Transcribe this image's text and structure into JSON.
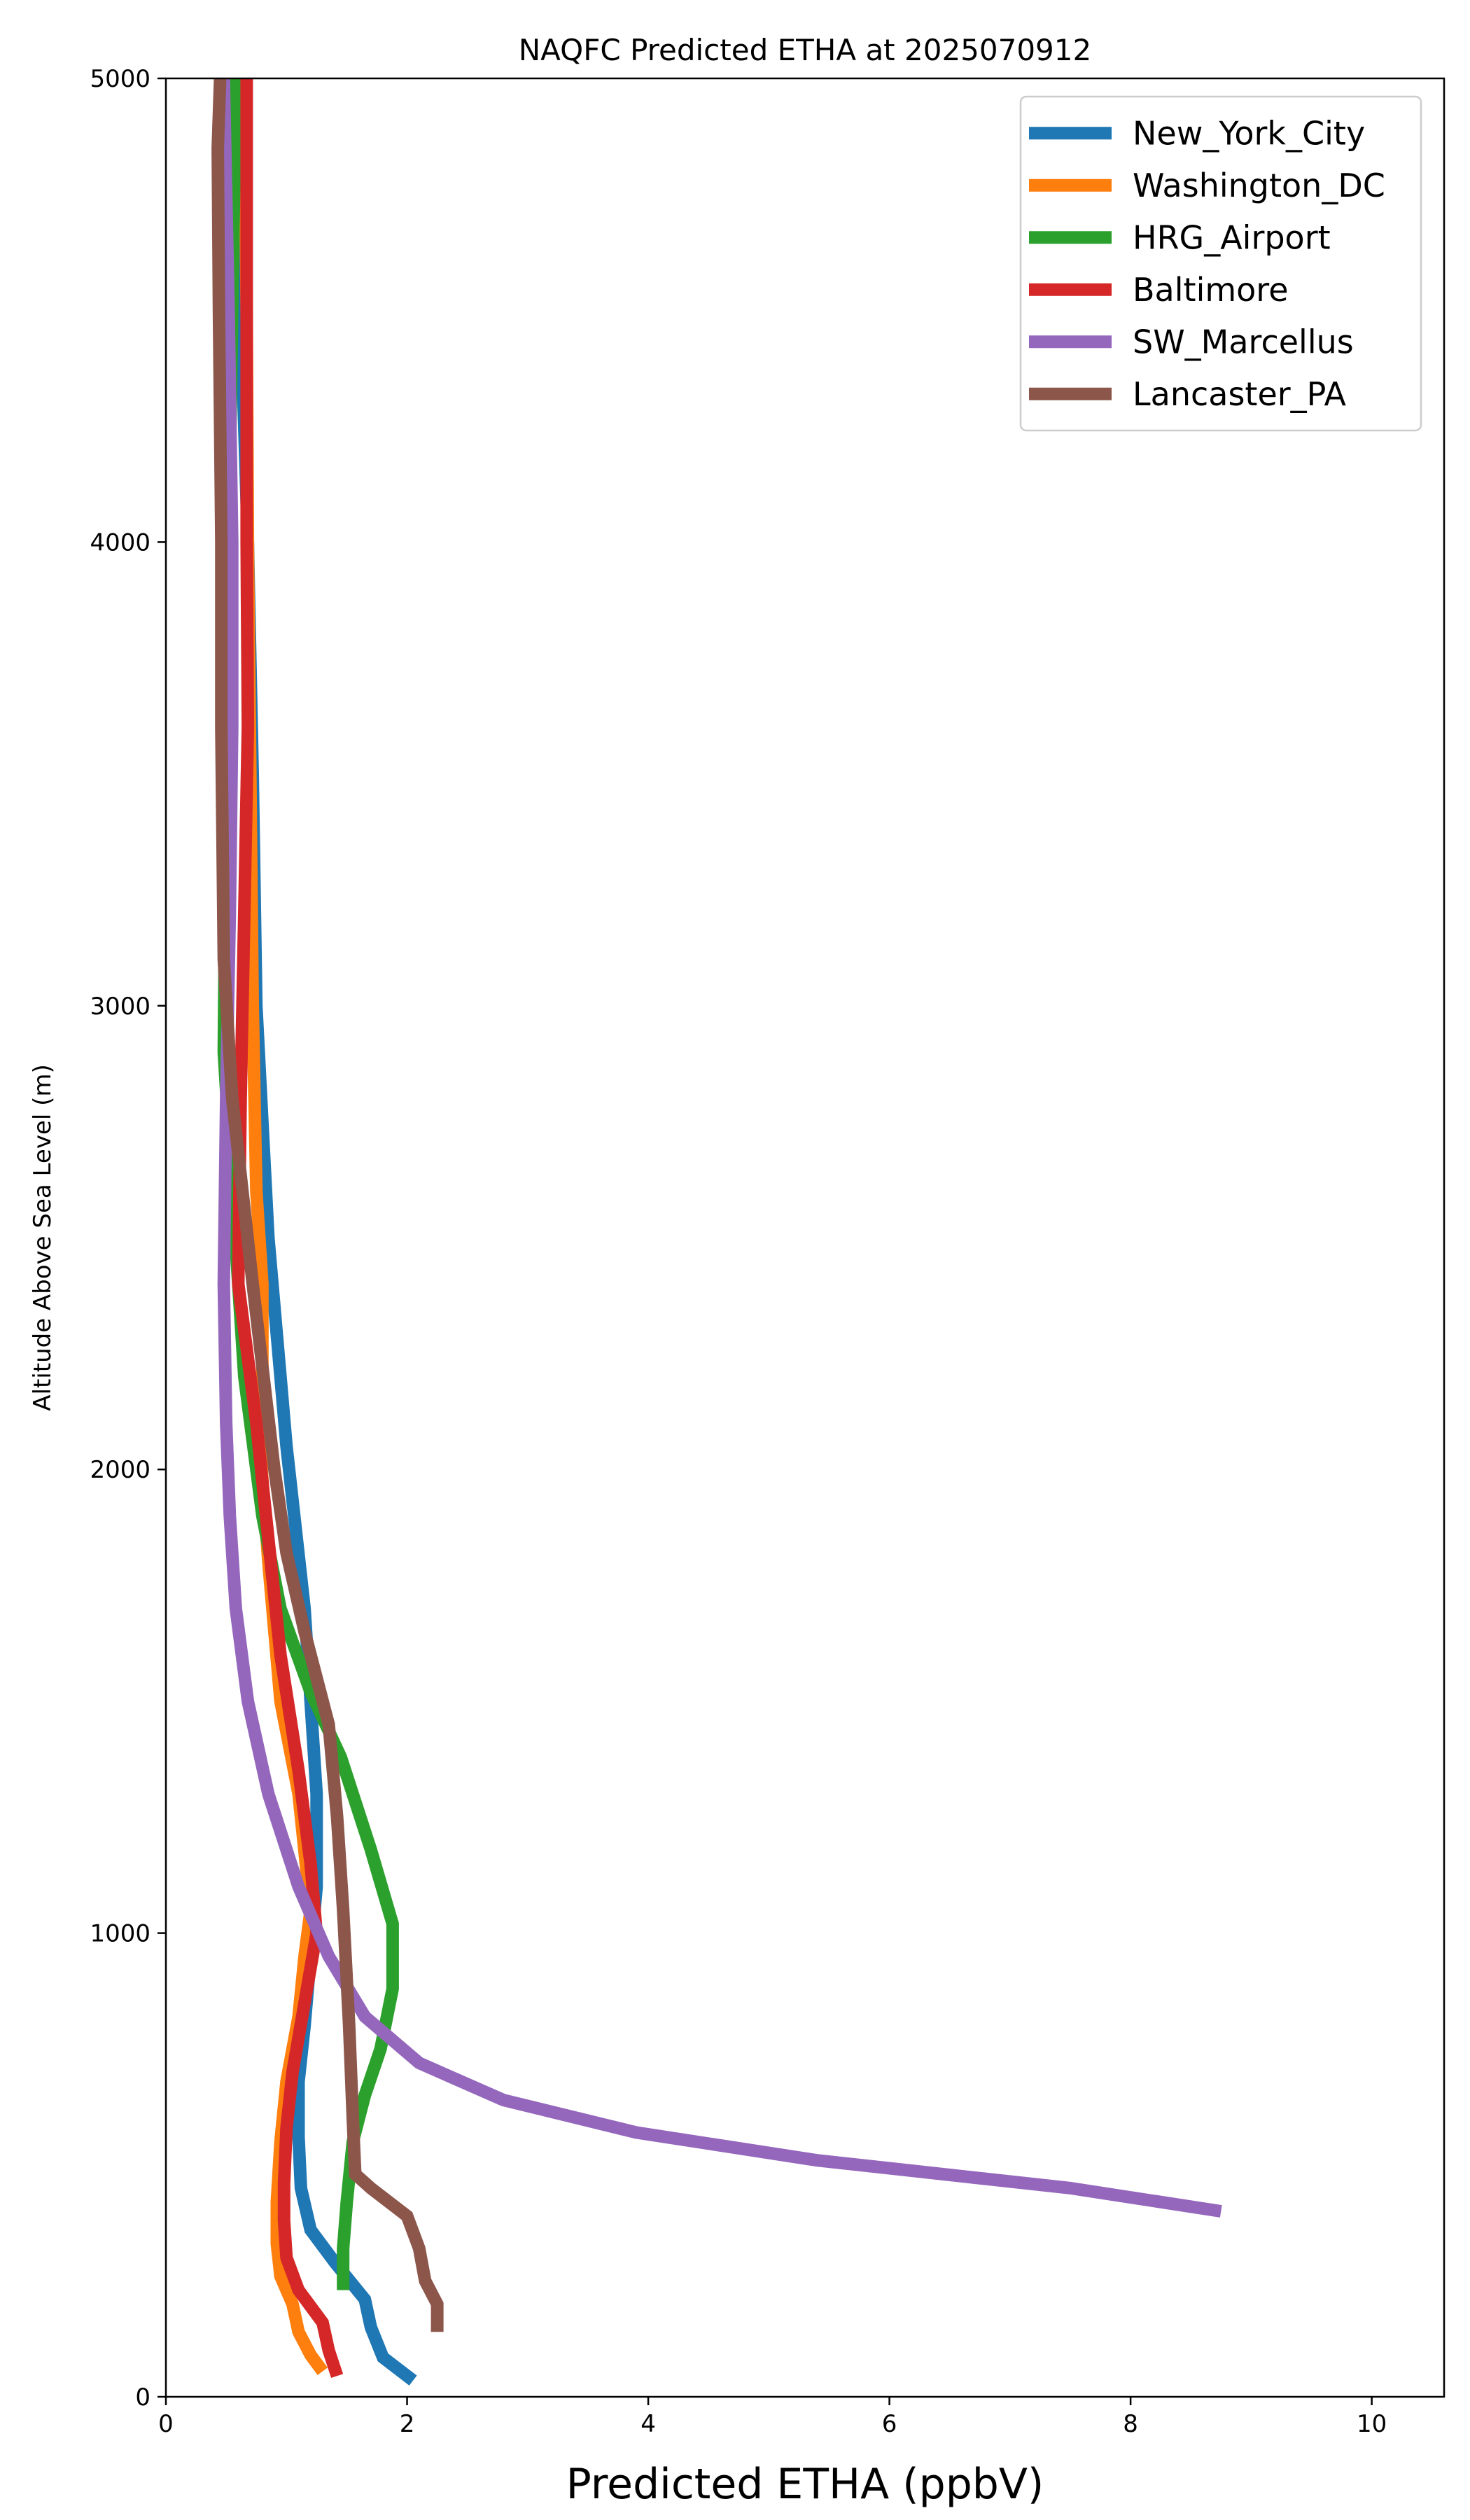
{
  "chart_data": {
    "type": "line",
    "title": "NAQFC Predicted ETHA at 2025070912",
    "xlabel": "Predicted ETHA (ppbV)",
    "ylabel": "Altitude Above Sea Level (m)",
    "xlim": [
      0,
      10.6
    ],
    "ylim": [
      0,
      5000
    ],
    "x_ticks": [
      0,
      2,
      4,
      6,
      8,
      10
    ],
    "y_ticks": [
      0,
      1000,
      2000,
      3000,
      4000,
      5000
    ],
    "legend_position": "top-right",
    "grid": false,
    "series": [
      {
        "name": "New_York_City",
        "color": "#1f77b4",
        "points": [
          [
            2.05,
            35
          ],
          [
            1.8,
            85
          ],
          [
            1.7,
            150
          ],
          [
            1.65,
            210
          ],
          [
            1.4,
            290
          ],
          [
            1.2,
            360
          ],
          [
            1.12,
            450
          ],
          [
            1.1,
            560
          ],
          [
            1.1,
            680
          ],
          [
            1.15,
            800
          ],
          [
            1.2,
            950
          ],
          [
            1.25,
            1100
          ],
          [
            1.25,
            1300
          ],
          [
            1.2,
            1500
          ],
          [
            1.15,
            1700
          ],
          [
            1.0,
            2050
          ],
          [
            0.95,
            2200
          ],
          [
            0.85,
            2500
          ],
          [
            0.75,
            3000
          ],
          [
            0.72,
            3500
          ],
          [
            0.68,
            4000
          ],
          [
            0.62,
            4500
          ],
          [
            0.6,
            5000
          ]
        ]
      },
      {
        "name": "Washington_DC",
        "color": "#ff7f0e",
        "points": [
          [
            1.3,
            55
          ],
          [
            1.2,
            90
          ],
          [
            1.1,
            140
          ],
          [
            1.05,
            200
          ],
          [
            0.95,
            260
          ],
          [
            0.92,
            330
          ],
          [
            0.92,
            420
          ],
          [
            0.95,
            550
          ],
          [
            1.0,
            680
          ],
          [
            1.1,
            820
          ],
          [
            1.15,
            950
          ],
          [
            1.2,
            1050
          ],
          [
            1.1,
            1300
          ],
          [
            0.95,
            1500
          ],
          [
            0.9,
            1650
          ],
          [
            0.85,
            1800
          ],
          [
            0.78,
            2050
          ],
          [
            0.8,
            2200
          ],
          [
            0.8,
            2400
          ],
          [
            0.75,
            2600
          ],
          [
            0.72,
            3000
          ],
          [
            0.7,
            3500
          ],
          [
            0.68,
            4000
          ],
          [
            0.67,
            4500
          ],
          [
            0.65,
            5000
          ]
        ]
      },
      {
        "name": "HRG_Airport",
        "color": "#2ca02c",
        "points": [
          [
            1.47,
            230
          ],
          [
            1.47,
            320
          ],
          [
            1.5,
            420
          ],
          [
            1.55,
            550
          ],
          [
            1.65,
            650
          ],
          [
            1.78,
            750
          ],
          [
            1.88,
            880
          ],
          [
            1.88,
            1020
          ],
          [
            1.7,
            1180
          ],
          [
            1.45,
            1380
          ],
          [
            1.2,
            1520
          ],
          [
            0.95,
            1700
          ],
          [
            0.8,
            1900
          ],
          [
            0.65,
            2200
          ],
          [
            0.55,
            2600
          ],
          [
            0.48,
            2900
          ],
          [
            0.5,
            3500
          ],
          [
            0.52,
            4000
          ],
          [
            0.55,
            4500
          ],
          [
            0.58,
            5000
          ]
        ]
      },
      {
        "name": "Baltimore",
        "color": "#d62728",
        "points": [
          [
            1.42,
            45
          ],
          [
            1.35,
            100
          ],
          [
            1.3,
            160
          ],
          [
            1.1,
            230
          ],
          [
            1.0,
            300
          ],
          [
            0.98,
            380
          ],
          [
            0.98,
            460
          ],
          [
            1.0,
            580
          ],
          [
            1.05,
            700
          ],
          [
            1.15,
            850
          ],
          [
            1.25,
            1000
          ],
          [
            1.2,
            1150
          ],
          [
            1.1,
            1350
          ],
          [
            0.95,
            1600
          ],
          [
            0.85,
            1850
          ],
          [
            0.75,
            2100
          ],
          [
            0.6,
            2400
          ],
          [
            0.62,
            2800
          ],
          [
            0.65,
            3200
          ],
          [
            0.68,
            3600
          ],
          [
            0.67,
            4000
          ],
          [
            0.67,
            4500
          ],
          [
            0.67,
            5000
          ]
        ]
      },
      {
        "name": "SW_Marcellus",
        "color": "#9467bd",
        "points": [
          [
            8.75,
            400
          ],
          [
            7.5,
            450
          ],
          [
            5.4,
            510
          ],
          [
            3.9,
            570
          ],
          [
            2.8,
            640
          ],
          [
            2.1,
            720
          ],
          [
            1.65,
            820
          ],
          [
            1.35,
            950
          ],
          [
            1.1,
            1100
          ],
          [
            0.85,
            1300
          ],
          [
            0.68,
            1500
          ],
          [
            0.58,
            1700
          ],
          [
            0.53,
            1900
          ],
          [
            0.5,
            2100
          ],
          [
            0.48,
            2400
          ],
          [
            0.5,
            2800
          ],
          [
            0.53,
            3200
          ],
          [
            0.55,
            3600
          ],
          [
            0.55,
            4000
          ],
          [
            0.52,
            4500
          ],
          [
            0.48,
            5000
          ]
        ]
      },
      {
        "name": "Lancaster_PA",
        "color": "#8c564b",
        "points": [
          [
            2.25,
            140
          ],
          [
            2.25,
            200
          ],
          [
            2.15,
            250
          ],
          [
            2.1,
            320
          ],
          [
            2.0,
            390
          ],
          [
            1.7,
            450
          ],
          [
            1.57,
            480
          ],
          [
            1.55,
            600
          ],
          [
            1.52,
            800
          ],
          [
            1.47,
            1050
          ],
          [
            1.42,
            1250
          ],
          [
            1.35,
            1450
          ],
          [
            1.15,
            1650
          ],
          [
            1.0,
            1820
          ],
          [
            0.9,
            2000
          ],
          [
            0.72,
            2400
          ],
          [
            0.55,
            2800
          ],
          [
            0.48,
            3100
          ],
          [
            0.46,
            3600
          ],
          [
            0.46,
            4000
          ],
          [
            0.44,
            4500
          ],
          [
            0.43,
            4850
          ],
          [
            0.45,
            5000
          ]
        ]
      }
    ]
  }
}
